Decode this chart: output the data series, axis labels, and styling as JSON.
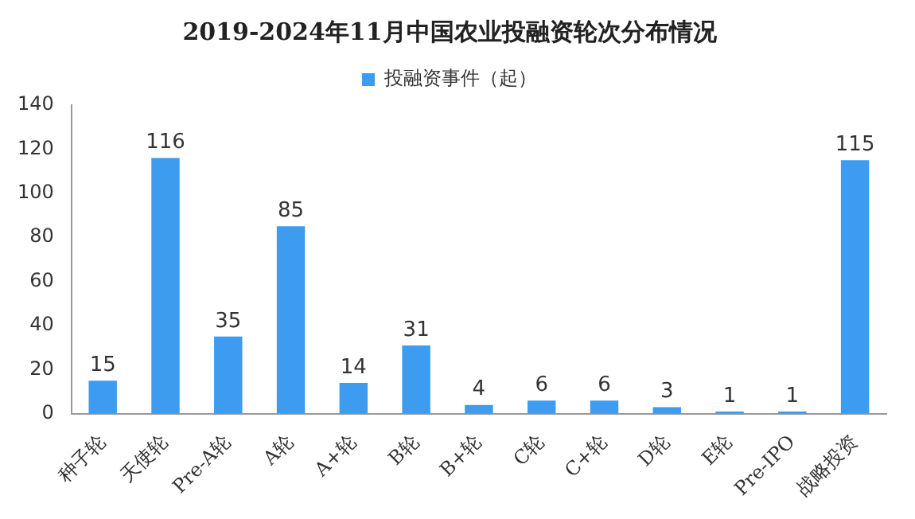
{
  "chart_data": {
    "type": "bar",
    "title": "2019-2024年11月中国农业投融资轮次分布情况",
    "categories": [
      "种子轮",
      "天使轮",
      "Pre-A轮",
      "A轮",
      "A+轮",
      "B轮",
      "B+轮",
      "C轮",
      "C+轮",
      "D轮",
      "E轮",
      "Pre-IPO",
      "战略投资"
    ],
    "series": [
      {
        "name": "投融资事件（起）",
        "color": "#3d9cf0",
        "values": [
          15,
          116,
          35,
          85,
          14,
          31,
          4,
          6,
          6,
          3,
          1,
          1,
          115
        ]
      }
    ],
    "ylim": [
      0,
      140
    ],
    "yticks": [
      0,
      20,
      40,
      60,
      80,
      100,
      120,
      140
    ],
    "grid": false,
    "legend": "top",
    "data_labels": true
  }
}
